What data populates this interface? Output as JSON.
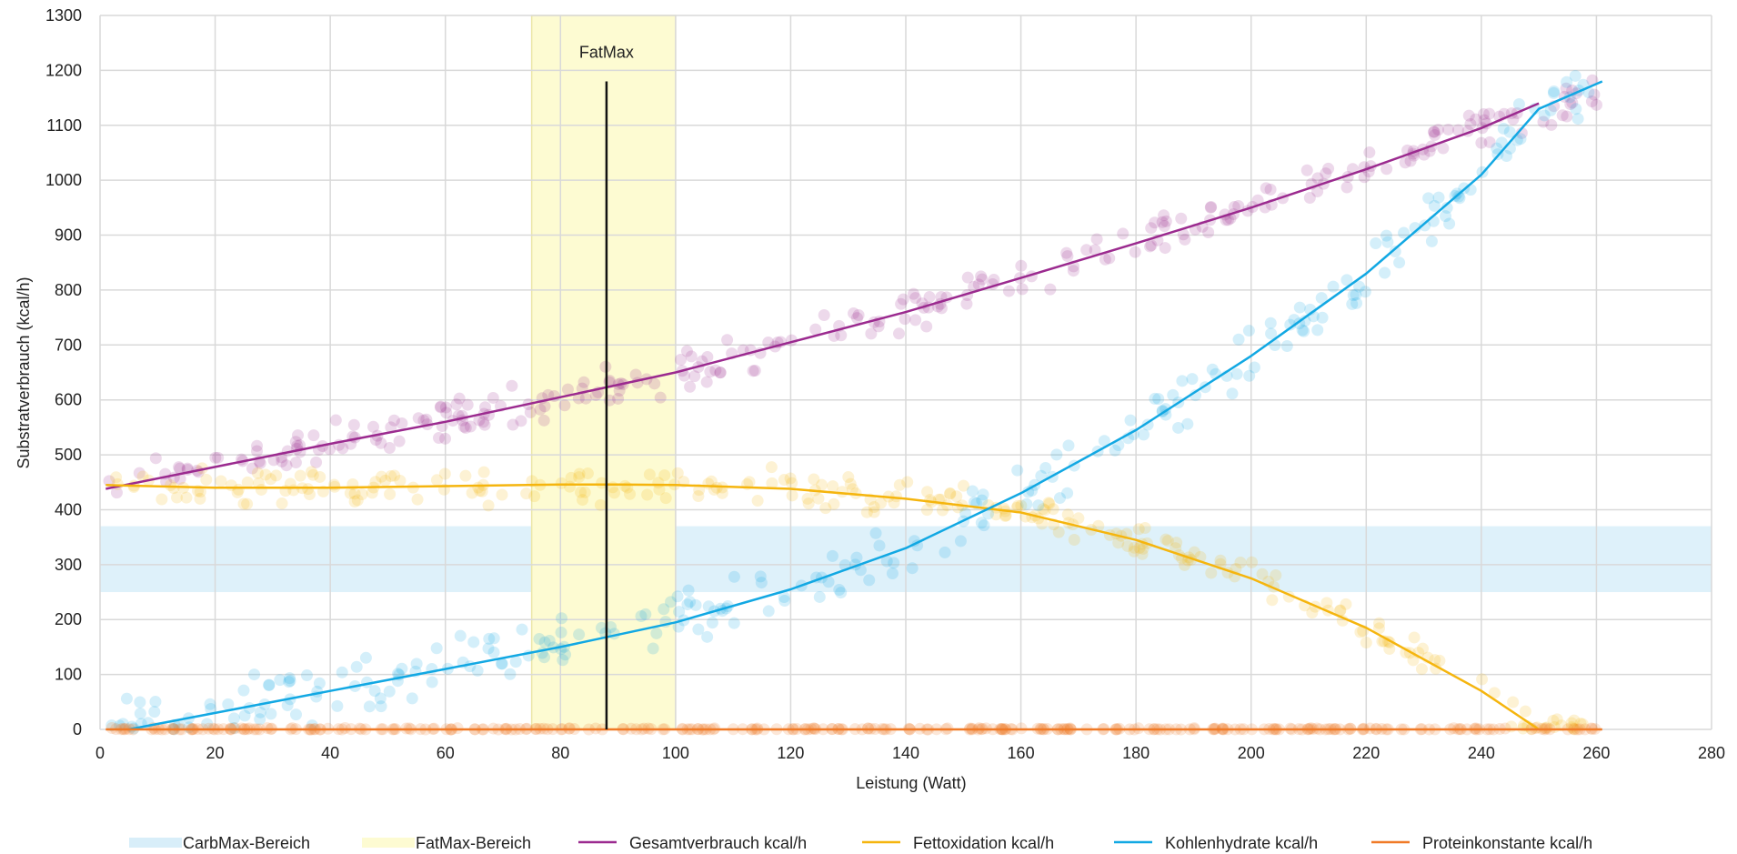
{
  "chart_data": {
    "type": "scatter",
    "title": "",
    "xlabel": "Leistung (Watt)",
    "ylabel": "Substratverbrauch (kcal/h)",
    "xlim": [
      0,
      280
    ],
    "ylim": [
      0,
      1300
    ],
    "x_ticks": [
      0,
      20,
      40,
      60,
      80,
      100,
      120,
      140,
      160,
      180,
      200,
      220,
      240,
      260,
      280
    ],
    "y_ticks": [
      0,
      100,
      200,
      300,
      400,
      500,
      600,
      700,
      800,
      900,
      1000,
      1100,
      1200,
      1300
    ],
    "grid": true,
    "legend_position": "bottom",
    "colors": {
      "gesamt": "#9b2a8f",
      "fett": "#f5b50e",
      "kohlen": "#12a8e3",
      "protein": "#f07a27",
      "carbmax_band": "#d8eef9",
      "fatmax_band": "#fdfbd2",
      "fatmax_line": "#111111"
    },
    "bands": [
      {
        "name": "CarbMax-Bereich",
        "axis": "y",
        "from": 250,
        "to": 370
      },
      {
        "name": "FatMax-Bereich",
        "axis": "x",
        "from": 75,
        "to": 100
      }
    ],
    "annotations": [
      {
        "label": "FatMax",
        "x": 88,
        "y_from": 0,
        "y_to": 1180
      }
    ],
    "series": [
      {
        "name": "Gesamtverbrauch kcal/h",
        "key": "gesamt",
        "line_x": [
          1,
          20,
          40,
          60,
          80,
          100,
          120,
          140,
          160,
          180,
          200,
          220,
          240,
          250
        ],
        "line_y": [
          438,
          478,
          520,
          560,
          605,
          650,
          705,
          760,
          822,
          885,
          950,
          1020,
          1095,
          1140
        ]
      },
      {
        "name": "Fettoxidation kcal/h",
        "key": "fett",
        "line_x": [
          1,
          20,
          40,
          60,
          80,
          90,
          100,
          120,
          140,
          160,
          180,
          200,
          220,
          240,
          250
        ],
        "line_y": [
          445,
          440,
          440,
          443,
          446,
          446,
          445,
          438,
          420,
          395,
          345,
          275,
          185,
          70,
          0
        ]
      },
      {
        "name": "Kohlenhydrate kcal/h",
        "key": "kohlen",
        "line_x": [
          5,
          20,
          40,
          60,
          80,
          100,
          120,
          140,
          160,
          180,
          200,
          220,
          240,
          250,
          261
        ],
        "line_y": [
          0,
          30,
          70,
          110,
          150,
          195,
          255,
          330,
          430,
          545,
          680,
          830,
          1010,
          1130,
          1180
        ]
      },
      {
        "name": "Proteinkonstante kcal/h",
        "key": "protein",
        "line_x": [
          1,
          261
        ],
        "line_y": [
          0,
          0
        ]
      }
    ],
    "scatter_clusters": [
      {
        "series": "Gesamtverbrauch kcal/h",
        "color_key": "gesamt",
        "x_from": 1,
        "x_to": 261,
        "curve": "gesamt",
        "spread": 45,
        "count": 300
      },
      {
        "series": "Fettoxidation kcal/h",
        "color_key": "fett",
        "x_from": 1,
        "x_to": 258,
        "curve": "fett",
        "spread": 40,
        "count": 280
      },
      {
        "series": "Kohlenhydrate kcal/h",
        "color_key": "kohlen",
        "x_from": 1,
        "x_to": 261,
        "curve": "kohlen",
        "spread": 60,
        "count": 280
      },
      {
        "series": "Proteinkonstante kcal/h",
        "color_key": "protein",
        "x_from": 1,
        "x_to": 261,
        "curve": "protein",
        "spread": 3,
        "count": 320
      }
    ]
  }
}
